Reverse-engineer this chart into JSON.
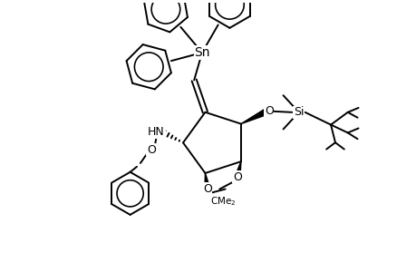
{
  "background_color": "#ffffff",
  "lc": "#000000",
  "lw": 1.4,
  "figsize": [
    4.6,
    3.0
  ],
  "dpi": 100,
  "xlim": [
    0,
    9.2
  ],
  "ylim": [
    0,
    6.0
  ]
}
